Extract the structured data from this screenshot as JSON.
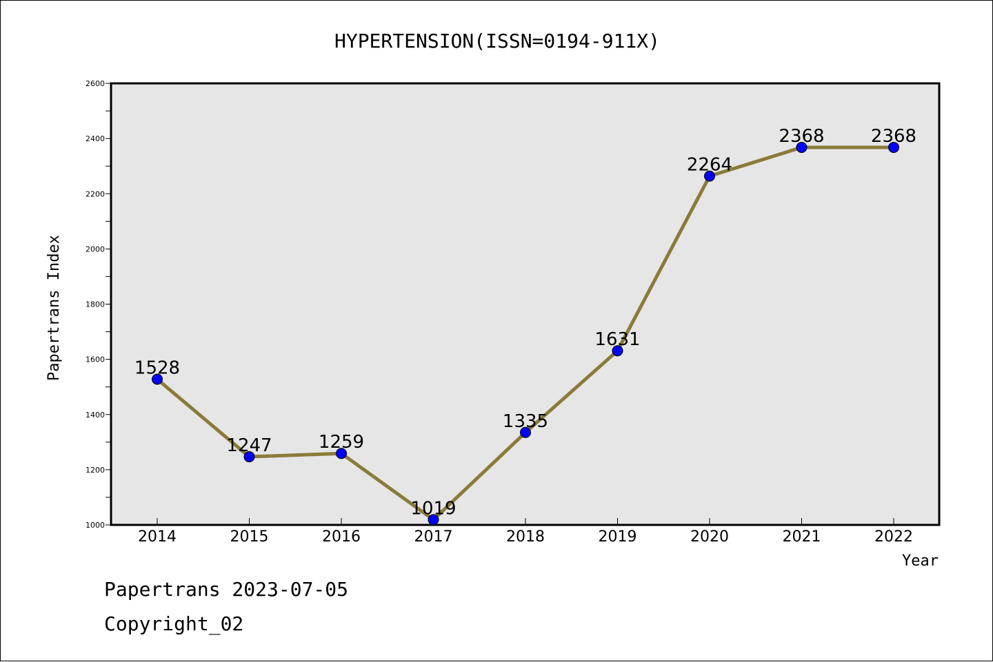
{
  "chart_data": {
    "type": "line",
    "title": "HYPERTENSION(ISSN=0194-911X)",
    "xlabel": "Year",
    "ylabel": "Papertrans Index",
    "categories": [
      "2014",
      "2015",
      "2016",
      "2017",
      "2018",
      "2019",
      "2020",
      "2021",
      "2022"
    ],
    "series": [
      {
        "values": [
          1528,
          1247,
          1259,
          1019,
          1335,
          1631,
          2264,
          2368,
          2368
        ]
      }
    ],
    "ylim": [
      1000,
      2600
    ],
    "yticks": [
      1000,
      1200,
      1400,
      1600,
      1800,
      2000,
      2200,
      2400,
      2600
    ],
    "grid": false,
    "line_color": "#8B7B3A",
    "marker_color": "#0000FF",
    "plot_background": "#E6E6E6"
  },
  "footer": {
    "line1": "Papertrans 2023-07-05",
    "line2": "Copyright_02"
  }
}
